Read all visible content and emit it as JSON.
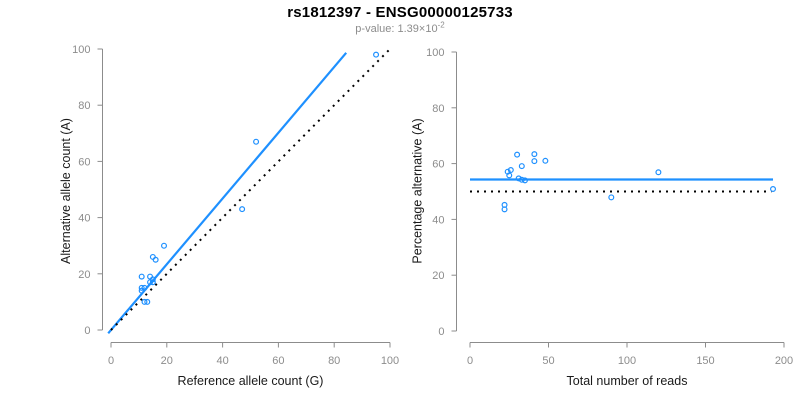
{
  "header": {
    "title": "rs1812397 - ENSG00000125733",
    "subtitle_prefix": "p-value: 1.39×10",
    "subtitle_exponent": "-2"
  },
  "colors": {
    "accent_blue": "#1E90FF",
    "dotted_black": "#000000",
    "axis_gray": "#8c8c8c",
    "axis_title_dark": "#1a1a1a",
    "subtitle_gray": "#8c8c8c"
  },
  "chart_data": [
    {
      "type": "scatter",
      "panel": "left",
      "xlabel": "Reference allele count (G)",
      "ylabel": "Alternative allele count (A)",
      "xlim": [
        0,
        100
      ],
      "ylim": [
        0,
        100
      ],
      "xticks": [
        0,
        20,
        40,
        60,
        80,
        100
      ],
      "yticks": [
        0,
        20,
        40,
        60,
        80,
        100
      ],
      "grid": false,
      "legend": "none",
      "points": [
        [
          11,
          19
        ],
        [
          15,
          26
        ],
        [
          16,
          25
        ],
        [
          19,
          30
        ],
        [
          14,
          19
        ],
        [
          11,
          15
        ],
        [
          11,
          14
        ],
        [
          12,
          15
        ],
        [
          14,
          17
        ],
        [
          15,
          18
        ],
        [
          15,
          17
        ],
        [
          52,
          67
        ],
        [
          47,
          43
        ],
        [
          95,
          98
        ],
        [
          12,
          10
        ],
        [
          13,
          10
        ]
      ],
      "lines": [
        {
          "name": "fit-line",
          "style": "solid",
          "color": "blue",
          "slope": 1.17,
          "intercept": 0,
          "x_range": [
            -1,
            84.3
          ]
        },
        {
          "name": "identity-line",
          "style": "dotted",
          "color": "black",
          "slope": 1,
          "intercept": 0,
          "x_range": [
            0,
            100.5
          ]
        }
      ]
    },
    {
      "type": "scatter",
      "panel": "right",
      "xlabel": "Total number of reads",
      "ylabel": "Percentage alternative (A)",
      "xlim": [
        0,
        200
      ],
      "ylim": [
        0,
        100
      ],
      "xticks": [
        0,
        50,
        100,
        150,
        200
      ],
      "yticks": [
        0,
        20,
        40,
        60,
        80,
        100
      ],
      "grid": false,
      "legend": "none",
      "points": [
        [
          30,
          63.2
        ],
        [
          41,
          63.4
        ],
        [
          41,
          60.9
        ],
        [
          48,
          61.0
        ],
        [
          33,
          59.1
        ],
        [
          26,
          57.7
        ],
        [
          24,
          57.1
        ],
        [
          25,
          55.8
        ],
        [
          31,
          54.7
        ],
        [
          33,
          54.2
        ],
        [
          35,
          54.0
        ],
        [
          120,
          56.9
        ],
        [
          90,
          47.9
        ],
        [
          193,
          50.9
        ],
        [
          22,
          45.2
        ],
        [
          22,
          43.6
        ]
      ],
      "lines": [
        {
          "name": "mean-line",
          "style": "solid",
          "color": "blue",
          "slope": 0,
          "intercept": 54.3,
          "x_range": [
            0,
            193
          ]
        },
        {
          "name": "null-50pct-line",
          "style": "dotted",
          "color": "black",
          "slope": 0,
          "intercept": 50,
          "x_range": [
            0,
            192
          ]
        }
      ]
    }
  ]
}
